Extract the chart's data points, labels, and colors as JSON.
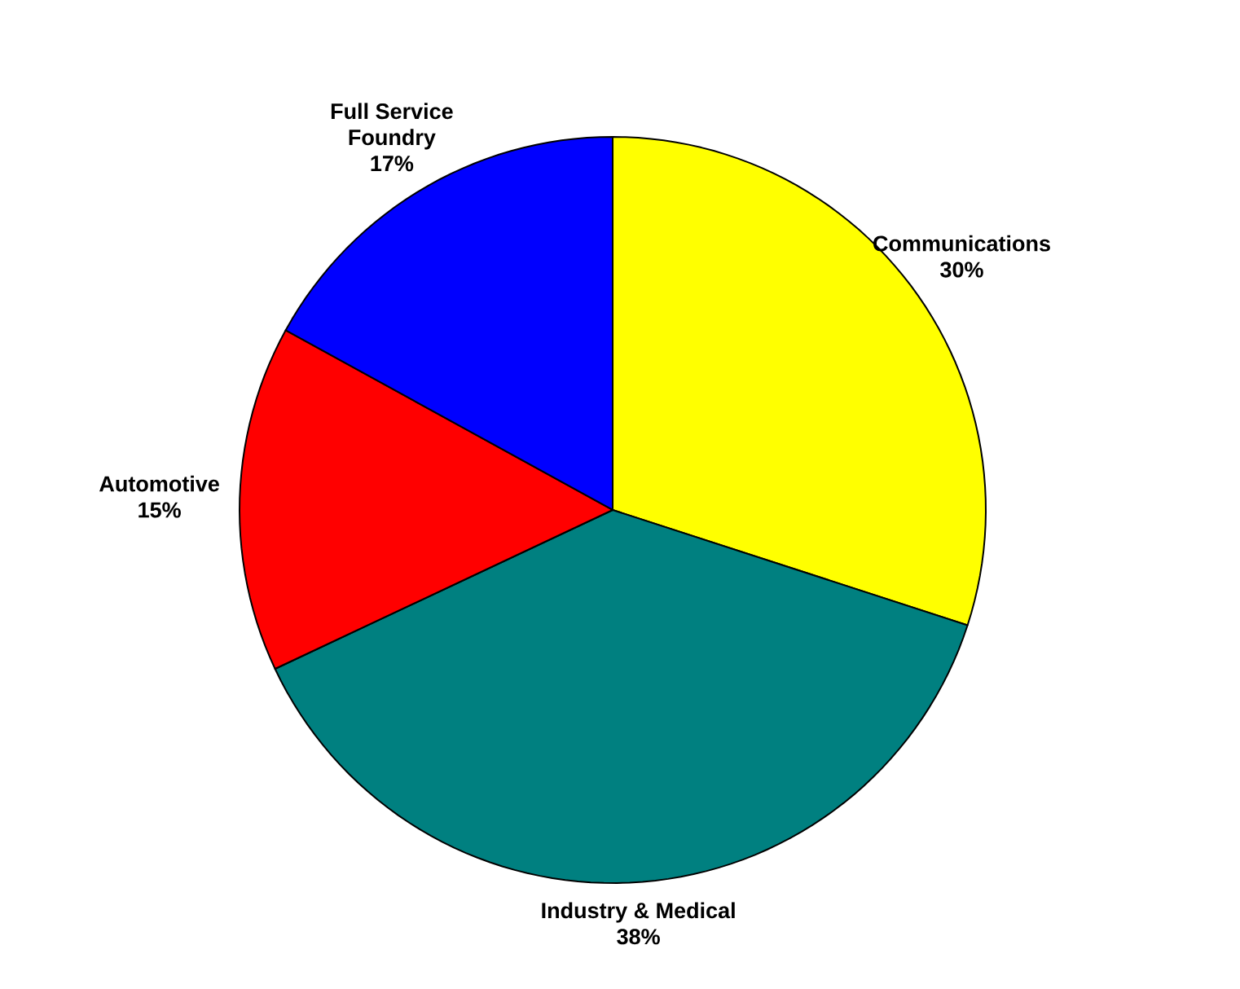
{
  "chart_data": {
    "type": "pie",
    "categories": [
      "Communications",
      "Industry & Medical",
      "Automotive",
      "Full Service Foundry"
    ],
    "values": [
      30,
      38,
      15,
      17
    ],
    "colors": [
      "#ffff00",
      "#008080",
      "#ff0000",
      "#0000ff"
    ],
    "value_labels": [
      "30%",
      "38%",
      "15%",
      "17%"
    ]
  }
}
